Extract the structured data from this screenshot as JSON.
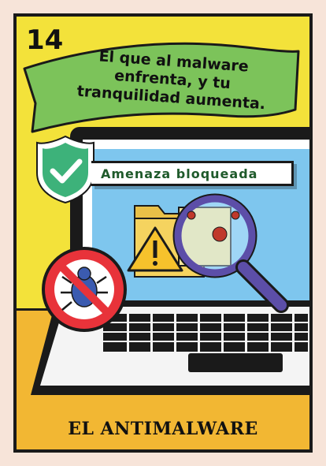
{
  "card": {
    "number": "14",
    "motto_lines": [
      "El que al malware",
      "enfrenta, y tu",
      "tranquilidad aumenta."
    ],
    "badge_text": "Amenaza bloqueada",
    "title": "EL ANTIMALWARE"
  },
  "colors": {
    "background": "#f3e23a",
    "lower_band": "#f2b733",
    "banner": "#7cc35a",
    "shield": "#3db27a",
    "screen": "#7ec6ee",
    "prohibition": "#e8333a",
    "magnifier": "#5c4ea8"
  },
  "icons": [
    "shield-check-icon",
    "folder-icon",
    "warning-icon",
    "magnifier-icon",
    "bug-icon",
    "prohibition-icon"
  ]
}
